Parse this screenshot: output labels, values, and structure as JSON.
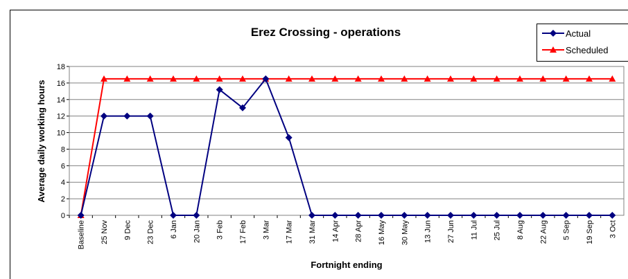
{
  "chart_data": {
    "type": "line",
    "title": "Erez Crossing - operations",
    "x_label": "Fortnight ending",
    "y_label": "Average daily working hours",
    "categories": [
      "Baseline",
      "25 Nov",
      "9 Dec",
      "23 Dec",
      "6 Jan",
      "20 Jan",
      "3 Feb",
      "17 Feb",
      "3 Mar",
      "17 Mar",
      "31 Mar",
      "14 Apr",
      "28 Apr",
      "16 May",
      "30 May",
      "13 Jun",
      "27 Jun",
      "11 Jul",
      "25 Jul",
      "8 Aug",
      "22 Aug",
      "5 Sep",
      "19 Sep",
      "3 Oct"
    ],
    "series": [
      {
        "name": "Actual",
        "color": "#000080",
        "marker": "diamond",
        "values": [
          0,
          12,
          12,
          12,
          0,
          0,
          15.2,
          13,
          16.5,
          9.4,
          0,
          0,
          0,
          0,
          0,
          0,
          0,
          0,
          0,
          0,
          0,
          0,
          0,
          0
        ]
      },
      {
        "name": "Scheduled",
        "color": "#ff0000",
        "marker": "triangle",
        "values": [
          0,
          16.5,
          16.5,
          16.5,
          16.5,
          16.5,
          16.5,
          16.5,
          16.5,
          16.5,
          16.5,
          16.5,
          16.5,
          16.5,
          16.5,
          16.5,
          16.5,
          16.5,
          16.5,
          16.5,
          16.5,
          16.5,
          16.5,
          16.5
        ]
      }
    ],
    "ylim": [
      0,
      18
    ],
    "yticks": [
      0,
      2,
      4,
      6,
      8,
      10,
      12,
      14,
      16,
      18
    ],
    "grid": true,
    "legend": "top-right"
  }
}
